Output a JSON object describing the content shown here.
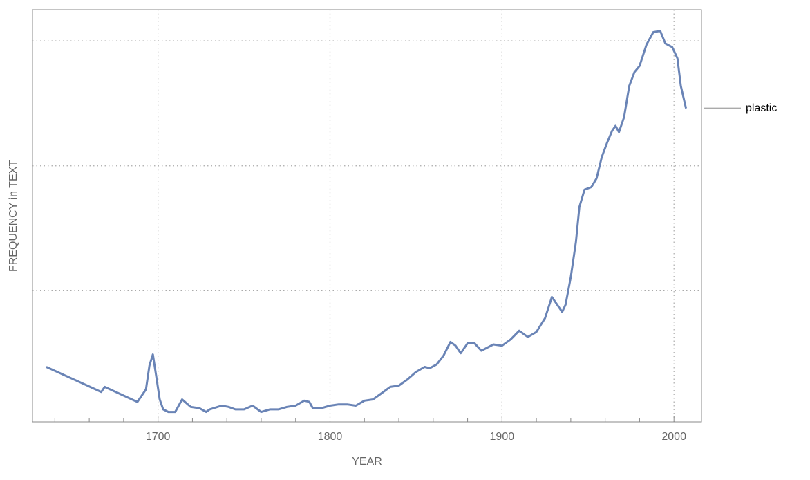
{
  "chart_data": {
    "type": "line",
    "xlabel": "YEAR",
    "ylabel": "FREQUENCY in TEXT",
    "x": [
      1635,
      1667,
      1669,
      1688,
      1693,
      1695,
      1697,
      1699,
      1701,
      1703,
      1706,
      1710,
      1714,
      1719,
      1724,
      1728,
      1730,
      1737,
      1741,
      1745,
      1750,
      1755,
      1760,
      1765,
      1770,
      1775,
      1780,
      1785,
      1788,
      1790,
      1795,
      1800,
      1805,
      1810,
      1815,
      1820,
      1825,
      1830,
      1835,
      1840,
      1845,
      1850,
      1855,
      1858,
      1862,
      1866,
      1870,
      1873,
      1876,
      1880,
      1884,
      1888,
      1895,
      1900,
      1905,
      1910,
      1915,
      1920,
      1925,
      1929,
      1932,
      1935,
      1937,
      1940,
      1943,
      1945,
      1948,
      1952,
      1955,
      1958,
      1961,
      1964,
      1966,
      1968,
      1971,
      1974,
      1977,
      1980,
      1984,
      1988,
      1992,
      1995,
      1999,
      2002,
      2004,
      2007
    ],
    "series": [
      {
        "name": "plastic",
        "color": "#6a84b6",
        "values": [
          0.39,
          0.19,
          0.23,
          0.11,
          0.21,
          0.4,
          0.49,
          0.31,
          0.13,
          0.05,
          0.03,
          0.03,
          0.13,
          0.07,
          0.06,
          0.03,
          0.05,
          0.08,
          0.07,
          0.05,
          0.05,
          0.08,
          0.03,
          0.05,
          0.05,
          0.07,
          0.08,
          0.12,
          0.11,
          0.06,
          0.06,
          0.08,
          0.09,
          0.09,
          0.08,
          0.12,
          0.13,
          0.18,
          0.23,
          0.24,
          0.29,
          0.35,
          0.39,
          0.38,
          0.41,
          0.48,
          0.59,
          0.56,
          0.5,
          0.58,
          0.58,
          0.52,
          0.57,
          0.56,
          0.61,
          0.68,
          0.63,
          0.67,
          0.78,
          0.95,
          0.89,
          0.83,
          0.89,
          1.11,
          1.39,
          1.67,
          1.81,
          1.83,
          1.9,
          2.07,
          2.18,
          2.28,
          2.32,
          2.27,
          2.39,
          2.64,
          2.75,
          2.8,
          2.97,
          3.07,
          3.08,
          2.98,
          2.95,
          2.86,
          2.64,
          2.46
        ]
      }
    ],
    "xlim": [
      1627,
      2016
    ],
    "xticks": [
      1700,
      1800,
      1900,
      2000
    ],
    "xminorticks": [
      1640,
      1660,
      1680,
      1720,
      1740,
      1760,
      1780,
      1820,
      1840,
      1860,
      1880,
      1920,
      1940,
      1960,
      1980
    ],
    "ylim": [
      -0.05,
      3.25
    ],
    "yticks": [
      1,
      2,
      3
    ],
    "grid": true
  }
}
